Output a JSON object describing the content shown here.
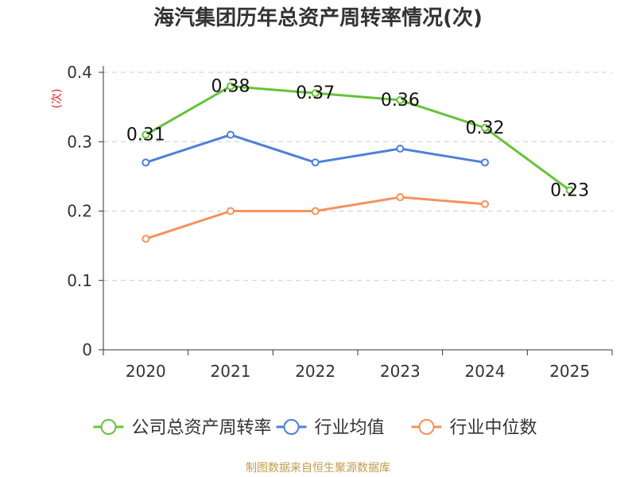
{
  "title": "海汽集团历年总资产周转率情况(次)",
  "source": "制图数据来自恒生聚源数据库",
  "chart_data": {
    "type": "line",
    "title": "海汽集团历年总资产周转率情况(次)",
    "ylabel": "(次)",
    "xlabel": "",
    "categories": [
      "2020",
      "2021",
      "2022",
      "2023",
      "2024",
      "2025"
    ],
    "ylim": [
      0,
      0.4
    ],
    "yticks": [
      "0",
      "0.1",
      "0.2",
      "0.3",
      "0.4"
    ],
    "grid": true,
    "legend_position": "bottom",
    "series": [
      {
        "name": "公司总资产周转率",
        "color": "#67c23a",
        "values": [
          0.31,
          0.38,
          0.37,
          0.36,
          0.32,
          0.23
        ],
        "labels": [
          "0.31",
          "0.38",
          "0.37",
          "0.36",
          "0.32",
          "0.23"
        ]
      },
      {
        "name": "行业均值",
        "color": "#4f7fd9",
        "values": [
          0.27,
          0.31,
          0.27,
          0.29,
          0.27,
          null
        ]
      },
      {
        "name": "行业中位数",
        "color": "#f5925e",
        "values": [
          0.16,
          0.2,
          0.2,
          0.22,
          0.21,
          null
        ]
      }
    ]
  }
}
